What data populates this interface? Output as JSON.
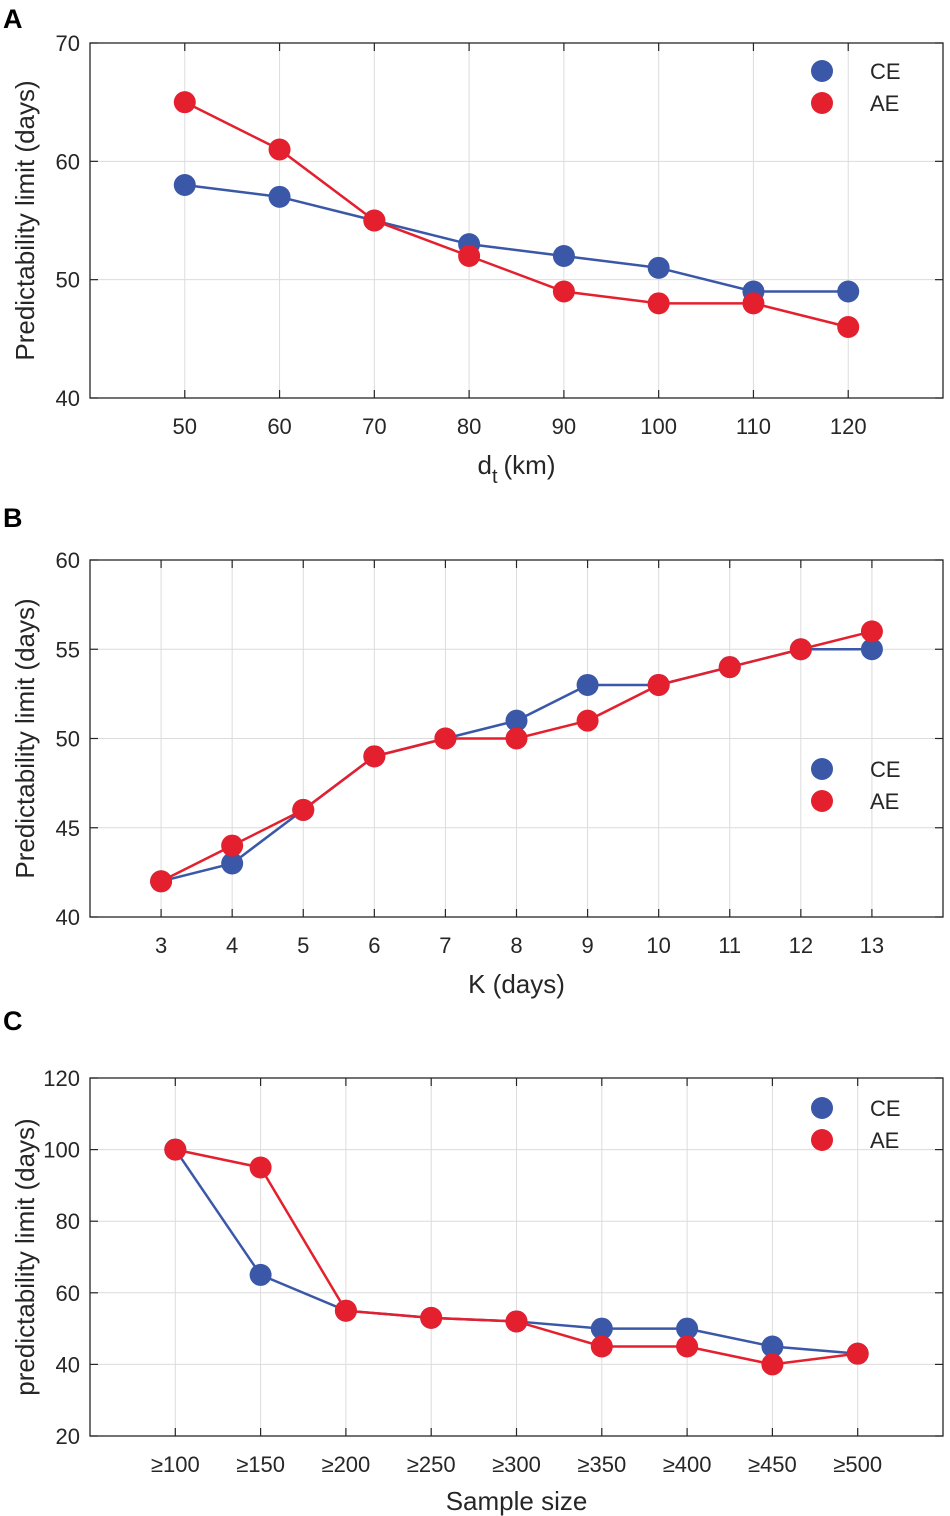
{
  "colors": {
    "CE": "#3a57a8",
    "AE": "#e5202e",
    "grid": "#dcdcdc",
    "axis": "#262626"
  },
  "chart_data": [
    {
      "type": "line",
      "panel": "A",
      "x": [
        50,
        60,
        70,
        80,
        90,
        100,
        110,
        120
      ],
      "xticks": [
        "50",
        "60",
        "70",
        "80",
        "90",
        "100",
        "110",
        "120"
      ],
      "xlim": [
        40,
        130
      ],
      "ylim": [
        40,
        70
      ],
      "yticks": [
        "40",
        "50",
        "60",
        "70"
      ],
      "ytick_values": [
        40,
        50,
        60,
        70
      ],
      "xlabel": "d",
      "xlabel_sub": "t",
      "xlabel_suffix": "(km)",
      "ylabel": "Predictability limit (days)",
      "legend": "top-right",
      "series": [
        {
          "name": "CE",
          "values": [
            58,
            57,
            55,
            53,
            52,
            51,
            49,
            49
          ]
        },
        {
          "name": "AE",
          "values": [
            65,
            61,
            55,
            52,
            49,
            48,
            48,
            46
          ]
        }
      ]
    },
    {
      "type": "line",
      "panel": "B",
      "x": [
        3,
        4,
        5,
        6,
        7,
        8,
        9,
        10,
        11,
        12,
        13
      ],
      "xticks": [
        "3",
        "4",
        "5",
        "6",
        "7",
        "8",
        "9",
        "10",
        "11",
        "12",
        "13"
      ],
      "xlim": [
        2,
        14
      ],
      "ylim": [
        40,
        60
      ],
      "yticks": [
        "40",
        "45",
        "50",
        "55",
        "60"
      ],
      "ytick_values": [
        40,
        45,
        50,
        55,
        60
      ],
      "xlabel": "K (days)",
      "ylabel": "Predictability limit (days)",
      "legend": "middle-right",
      "series": [
        {
          "name": "CE",
          "values": [
            42,
            43,
            46,
            49,
            50,
            51,
            53,
            53,
            54,
            55,
            55
          ]
        },
        {
          "name": "AE",
          "values": [
            42,
            44,
            46,
            49,
            50,
            50,
            51,
            53,
            54,
            55,
            56
          ]
        }
      ]
    },
    {
      "type": "line",
      "panel": "C",
      "x": [
        1,
        2,
        3,
        4,
        5,
        6,
        7,
        8,
        9
      ],
      "xticks": [
        "≥100",
        "≥150",
        "≥200",
        "≥250",
        "≥300",
        "≥350",
        "≥400",
        "≥450",
        "≥500"
      ],
      "xlim": [
        0,
        10
      ],
      "ylim": [
        20,
        120
      ],
      "yticks": [
        "20",
        "40",
        "60",
        "80",
        "100",
        "120"
      ],
      "ytick_values": [
        20,
        40,
        60,
        80,
        100,
        120
      ],
      "xlabel": "Sample size",
      "ylabel": "predictability limit (days)",
      "legend": "top-right",
      "series": [
        {
          "name": "CE",
          "values": [
            100,
            65,
            55,
            53,
            52,
            50,
            50,
            45,
            43
          ]
        },
        {
          "name": "AE",
          "values": [
            100,
            95,
            55,
            53,
            52,
            45,
            45,
            40,
            43
          ]
        }
      ]
    }
  ]
}
